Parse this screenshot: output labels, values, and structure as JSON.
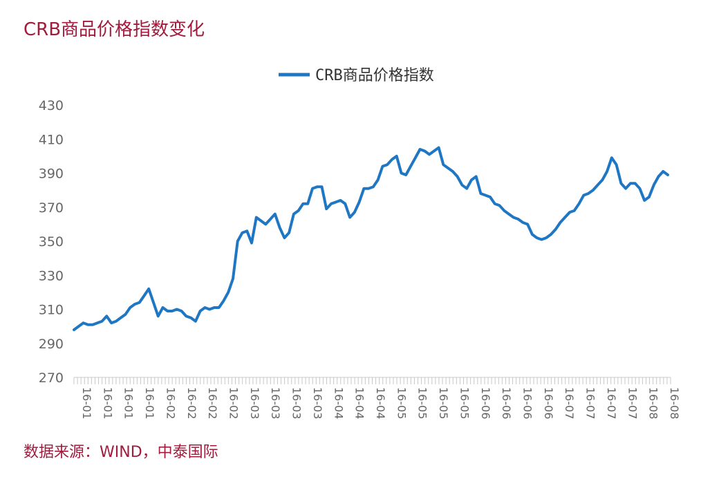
{
  "header": {
    "title": "CRB商品价格指数变化"
  },
  "footer": {
    "source": "数据来源：WIND，中泰国际"
  },
  "chart_data": {
    "type": "line",
    "title": "",
    "xlabel": "",
    "ylabel": "",
    "ylim": [
      270,
      430
    ],
    "yticks": [
      270,
      290,
      310,
      330,
      350,
      370,
      390,
      410,
      430
    ],
    "grid": false,
    "legend_position": "top-center",
    "x_tick_labels": [
      "16-01",
      "16-01",
      "16-01",
      "16-01",
      "16-02",
      "16-02",
      "16-02",
      "16-02",
      "16-03",
      "16-03",
      "16-03",
      "16-03",
      "16-04",
      "16-04",
      "16-04",
      "16-05",
      "16-05",
      "16-05",
      "16-05",
      "16-06",
      "16-06",
      "16-06",
      "16-06",
      "16-07",
      "16-07",
      "16-07",
      "16-07",
      "16-08",
      "16-08"
    ],
    "series": [
      {
        "name": "CRB商品价格指数",
        "color": "#1f77c4",
        "values": [
          298,
          300,
          302,
          301,
          301,
          302,
          303,
          306,
          302,
          303,
          305,
          307,
          311,
          313,
          314,
          318,
          322,
          314,
          306,
          311,
          309,
          309,
          310,
          309,
          306,
          305,
          303,
          309,
          311,
          310,
          311,
          311,
          315,
          320,
          328,
          350,
          355,
          356,
          349,
          364,
          362,
          360,
          363,
          366,
          358,
          352,
          355,
          366,
          368,
          372,
          372,
          381,
          382,
          382,
          369,
          372,
          373,
          374,
          372,
          364,
          367,
          373,
          381,
          381,
          382,
          386,
          394,
          395,
          398,
          400,
          390,
          389,
          394,
          399,
          404,
          403,
          401,
          403,
          405,
          395,
          393,
          391,
          388,
          383,
          381,
          386,
          388,
          378,
          377,
          376,
          372,
          371,
          368,
          366,
          364,
          363,
          361,
          360,
          354,
          352,
          351,
          352,
          354,
          357,
          361,
          364,
          367,
          368,
          372,
          377,
          378,
          380,
          383,
          386,
          391,
          399,
          395,
          384,
          381,
          384,
          384,
          381,
          374,
          376,
          383,
          388,
          391,
          389
        ]
      }
    ]
  }
}
